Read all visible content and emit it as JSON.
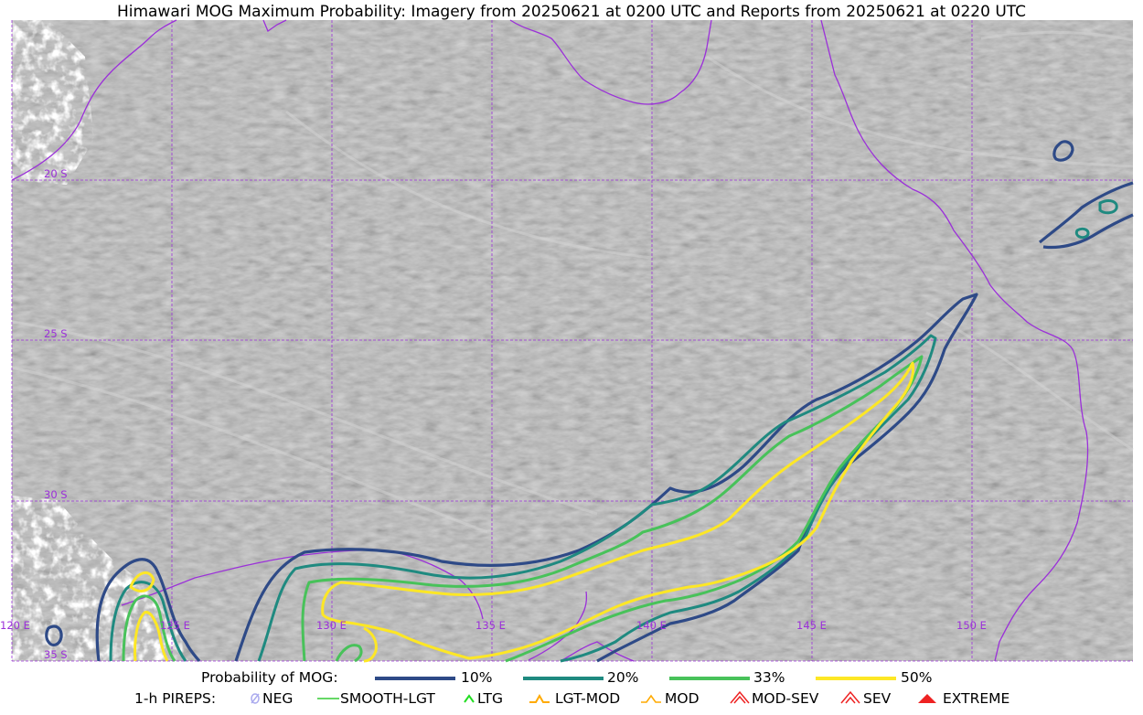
{
  "title": "Himawari MOG Maximum Probability: Imagery from 20250621 at 0200 UTC and Reports from 20250621 at 0220 UTC",
  "map": {
    "lat_labels": [
      "20 S",
      "25 S",
      "30 S",
      "35 S"
    ],
    "lon_labels": [
      "120 E",
      "125 E",
      "130 E",
      "135 E",
      "140 E",
      "145 E",
      "150 E"
    ],
    "colors": {
      "background": "#b9b9b9",
      "coastline": "#9b30d9",
      "grid": "#9b30d9",
      "p10": "#2e4a87",
      "p20": "#1f8a80",
      "p33": "#48c25a",
      "p50": "#fde725"
    }
  },
  "legend": {
    "prob_label": "Probability of MOG:",
    "prob_items": [
      {
        "label": "10%",
        "color": "#2e4a87"
      },
      {
        "label": "20%",
        "color": "#1f8a80"
      },
      {
        "label": "33%",
        "color": "#48c25a"
      },
      {
        "label": "50%",
        "color": "#fde725"
      }
    ],
    "pirep_label": "1-h PIREPS:",
    "pirep_items": [
      {
        "label": "NEG",
        "icon": "neg-icon",
        "color": "#aaaaee"
      },
      {
        "label": "SMOOTH-LGT",
        "icon": "smooth-lgt-icon",
        "color": "#33cc33"
      },
      {
        "label": "LTG",
        "icon": "ltg-icon",
        "color": "#22dd22"
      },
      {
        "label": "LGT-MOD",
        "icon": "lgt-mod-icon",
        "color": "#ffaa00"
      },
      {
        "label": "MOD",
        "icon": "mod-icon",
        "color": "#ffaa00"
      },
      {
        "label": "MOD-SEV",
        "icon": "mod-sev-icon",
        "color": "#ee2222"
      },
      {
        "label": "SEV",
        "icon": "sev-icon",
        "color": "#ee2222"
      },
      {
        "label": "EXTREME",
        "icon": "extreme-icon",
        "color": "#ee2222"
      }
    ]
  }
}
